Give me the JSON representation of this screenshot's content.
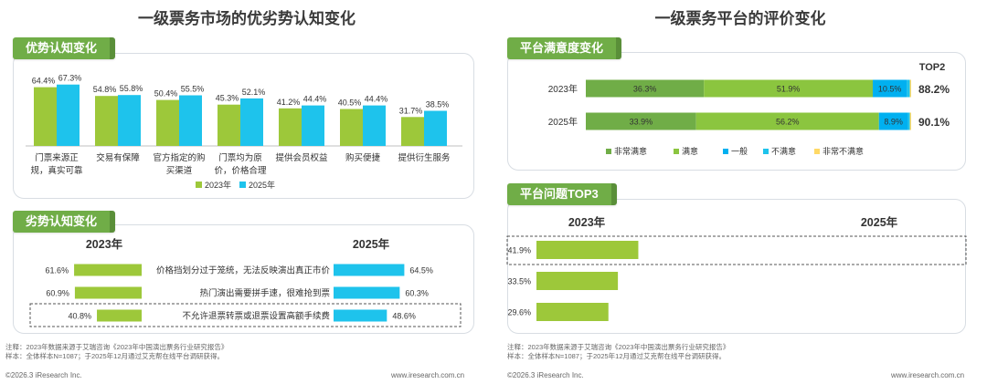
{
  "left": {
    "title": "一级票务市场的优劣势认知变化",
    "advantage": {
      "tab": "优势认知变化",
      "legend": [
        "2023年",
        "2025年"
      ]
    },
    "disadvantage": {
      "tab": "劣势认知变化",
      "col_2023": "2023年",
      "col_2025": "2025年"
    },
    "note_line1": "注释：2023年数据来源于艾瑞咨询《2023年中国演出票务行业研究报告》",
    "note_line2": "样本：全体样本N=1087；于2025年12月通过艾克帮在线平台调研获得。",
    "copyright": "©2026.3 iResearch Inc.",
    "website": "www.iresearch.com.cn"
  },
  "right": {
    "title": "一级票务平台的评价变化",
    "satisfaction": {
      "tab": "平台满意度变化",
      "top2_header": "TOP2"
    },
    "problems": {
      "tab": "平台问题TOP3",
      "col_2023": "2023年",
      "col_2025": "2025年"
    },
    "note_line1": "注释：2023年数据来源于艾瑞咨询《2023年中国演出票务行业研究报告》",
    "note_line2": "样本：全体样本N=1087；于2025年12月通过艾克帮在线平台调研获得。",
    "copyright": "©2026.3 iResearch Inc.",
    "website": "www.iresearch.com.cn"
  },
  "colors": {
    "green": "#9dc83a",
    "cyan": "#1ec3ec",
    "dark_green": "#70ad47",
    "lime": "#8bc53f",
    "light_blue": "#00b0f0",
    "yellow": "#ffd966"
  },
  "chart_data": [
    {
      "type": "bar",
      "id": "advantage",
      "title": "优势认知变化",
      "categories": [
        "门票来源正规，真实可靠",
        "交易有保障",
        "官方指定的购买渠道",
        "门票均为原价，价格合理",
        "提供会员权益",
        "购买便捷",
        "提供衍生服务"
      ],
      "category_lines": [
        [
          "门票来源正",
          "规，真实可靠"
        ],
        [
          "交易有保障"
        ],
        [
          "官方指定的购",
          "买渠道"
        ],
        [
          "门票均为原",
          "价，价格合理"
        ],
        [
          "提供会员权益"
        ],
        [
          "购买便捷"
        ],
        [
          "提供衍生服务"
        ]
      ],
      "series": [
        {
          "name": "2023年",
          "values": [
            64.4,
            54.8,
            50.4,
            45.3,
            41.2,
            40.5,
            31.7
          ]
        },
        {
          "name": "2025年",
          "values": [
            67.3,
            55.8,
            55.5,
            52.1,
            44.4,
            44.4,
            38.5
          ]
        }
      ],
      "unit": "%",
      "ylim": [
        0,
        70
      ]
    },
    {
      "type": "bar",
      "id": "disadvantage",
      "orientation": "horizontal-diverging",
      "title": "劣势认知变化",
      "categories": [
        "价格挡划分过于笼统，无法反映演出真正市价",
        "热门演出需要拼手速，很难抢到票",
        "不允许退票转票或退票设置高额手续费"
      ],
      "series": [
        {
          "name": "2023年",
          "values": [
            61.6,
            60.9,
            40.8
          ]
        },
        {
          "name": "2025年",
          "values": [
            64.5,
            60.3,
            48.6
          ]
        }
      ],
      "highlight_index": 2,
      "unit": "%",
      "xlim": [
        0,
        70
      ]
    },
    {
      "type": "bar",
      "id": "satisfaction",
      "orientation": "horizontal-stacked",
      "title": "平台满意度变化",
      "categories": [
        "2023年",
        "2025年"
      ],
      "series": [
        {
          "name": "非常满意",
          "values": [
            36.3,
            33.9
          ]
        },
        {
          "name": "满意",
          "values": [
            51.9,
            56.2
          ]
        },
        {
          "name": "一般",
          "values": [
            10.5,
            8.9
          ]
        },
        {
          "name": "不满意",
          "values": [
            0.9,
            0.6
          ]
        },
        {
          "name": "非常不满意",
          "values": [
            0.4,
            0.4
          ]
        }
      ],
      "top2": [
        "88.2%",
        "90.1%"
      ],
      "unit": "%",
      "xlim": [
        0,
        100
      ]
    },
    {
      "type": "bar",
      "id": "problems",
      "orientation": "horizontal",
      "title": "平台问题TOP3",
      "series": [
        {
          "name": "2023年",
          "values": [
            41.9,
            33.5,
            29.6
          ]
        }
      ],
      "highlight_index": 0,
      "unit": "%",
      "xlim": [
        0,
        70
      ]
    }
  ]
}
